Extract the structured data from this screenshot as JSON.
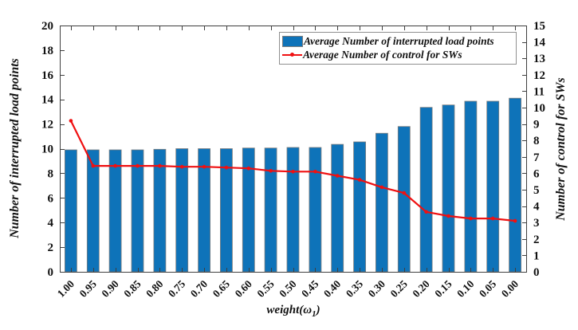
{
  "figure": {
    "background": "#ffffff",
    "bar_color": "#0e73b9",
    "bar_edge_color": "#7d7d7d",
    "line_color": "#ef1011",
    "axis_color": "#3f3f3f",
    "tick_label_color": "#111111"
  },
  "chart_data": {
    "type": "bar",
    "categories": [
      "1.00",
      "0.95",
      "0.90",
      "0.85",
      "0.80",
      "0.75",
      "0.70",
      "0.65",
      "0.60",
      "0.55",
      "0.50",
      "0.45",
      "0.40",
      "0.35",
      "0.30",
      "0.25",
      "0.20",
      "0.15",
      "0.10",
      "0.05",
      "0.00"
    ],
    "series": [
      {
        "name": "Average Number of interrupted load points",
        "type": "bar",
        "axis": "left",
        "values": [
          9.9,
          9.9,
          9.9,
          9.9,
          9.95,
          10.0,
          10.0,
          10.0,
          10.05,
          10.05,
          10.1,
          10.1,
          10.35,
          10.55,
          11.25,
          11.8,
          13.35,
          13.55,
          13.85,
          13.85,
          14.1
        ]
      },
      {
        "name": "Average Number of control for SWs",
        "type": "line",
        "axis": "right",
        "values": [
          9.2,
          6.45,
          6.45,
          6.45,
          6.45,
          6.4,
          6.4,
          6.35,
          6.3,
          6.15,
          6.1,
          6.1,
          5.85,
          5.6,
          5.15,
          4.8,
          3.65,
          3.4,
          3.25,
          3.25,
          3.1
        ]
      }
    ],
    "title": "",
    "xlabel_main": "weight(ω",
    "xlabel_sub": "1",
    "xlabel_close": ")",
    "ylabel_left": "Number of interrupted load points",
    "ylabel_right": "Number of control for SWs",
    "ylim_left": [
      0,
      20
    ],
    "ytick_step_left": 2,
    "ylim_right": [
      0,
      15
    ],
    "ytick_step_right": 1,
    "grid": false,
    "legend_position": "top-right"
  }
}
